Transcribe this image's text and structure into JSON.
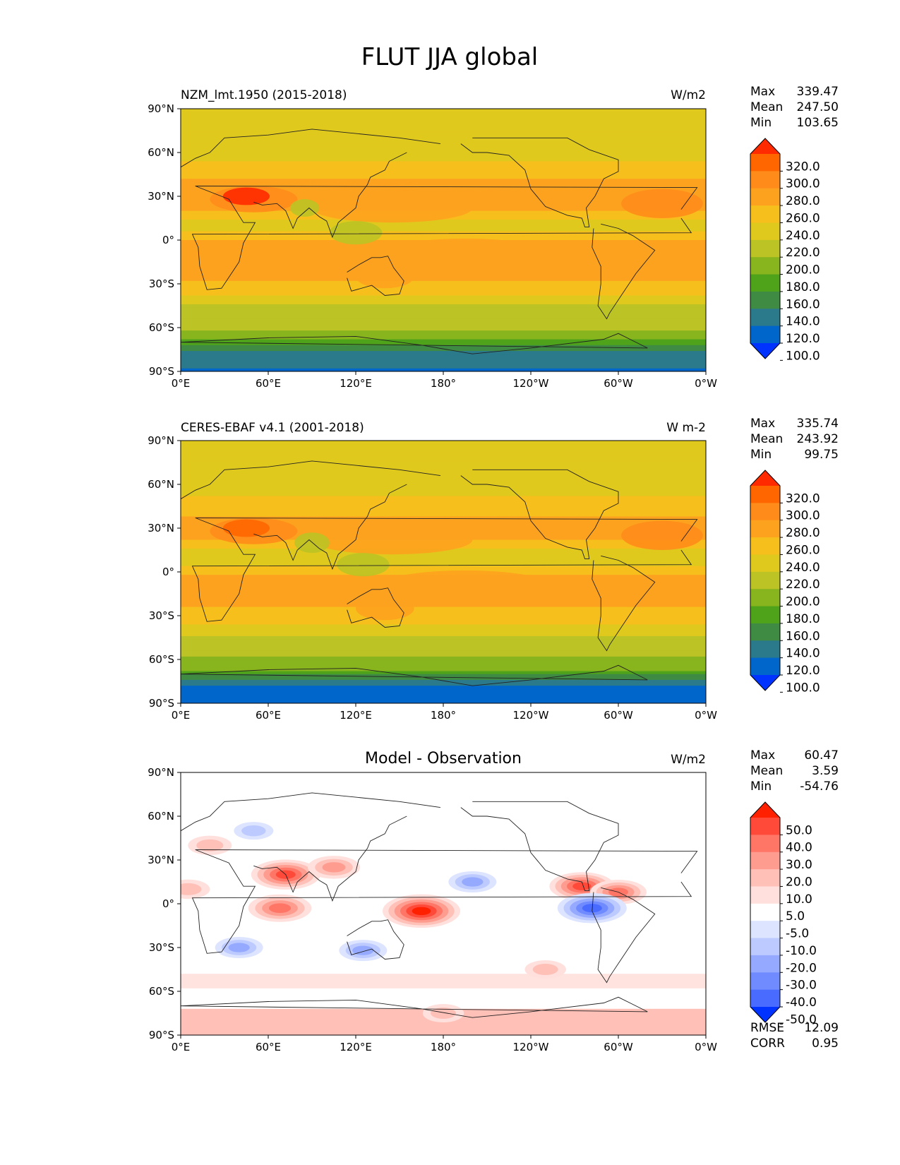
{
  "figure": {
    "title": "FLUT JJA global"
  },
  "chart_data": [
    {
      "type": "heatmap",
      "title": "NZM_lmt.1950 (2015-2018)",
      "units": "W/m2",
      "stats": [
        {
          "label": "Max",
          "value": "339.47"
        },
        {
          "label": "Mean",
          "value": "247.50"
        },
        {
          "label": "Min",
          "value": "103.65"
        }
      ],
      "x_ticks": [
        "0°E",
        "60°E",
        "120°E",
        "180°",
        "120°W",
        "60°W",
        "0°W"
      ],
      "y_ticks": [
        "90°N",
        "60°N",
        "30°N",
        "0°",
        "30°S",
        "60°S",
        "90°S"
      ],
      "xlim": [
        0,
        360
      ],
      "ylim": [
        -90,
        90
      ],
      "colorbar": {
        "levels": [
          "320.0",
          "300.0",
          "280.0",
          "260.0",
          "240.0",
          "220.0",
          "200.0",
          "180.0",
          "160.0",
          "140.0",
          "120.0",
          "100.0"
        ],
        "colors": [
          "#ff2a00",
          "#ff6600",
          "#ff8c1a",
          "#fda21e",
          "#f7bf1c",
          "#e0c91d",
          "#bcc325",
          "#88b41d",
          "#4ea31a",
          "#3f8b43",
          "#2a7a8c",
          "#0066cc",
          "#0033ff"
        ]
      },
      "profile": [
        {
          "lat": 90,
          "value": 230
        },
        {
          "lat": 60,
          "value": 232
        },
        {
          "lat": 40,
          "value": 262
        },
        {
          "lat": 25,
          "value": 278
        },
        {
          "lat": 10,
          "value": 226
        },
        {
          "lat": 0,
          "value": 262
        },
        {
          "lat": -15,
          "value": 275
        },
        {
          "lat": -30,
          "value": 258
        },
        {
          "lat": -45,
          "value": 220
        },
        {
          "lat": -60,
          "value": 205
        },
        {
          "lat": -68,
          "value": 185
        },
        {
          "lat": -78,
          "value": 135
        },
        {
          "lat": -90,
          "value": 118
        }
      ]
    },
    {
      "type": "heatmap",
      "title": "CERES-EBAF v4.1 (2001-2018)",
      "units": "W m-2",
      "stats": [
        {
          "label": "Max",
          "value": "335.74"
        },
        {
          "label": "Mean",
          "value": "243.92"
        },
        {
          "label": "Min",
          "value": "99.75"
        }
      ],
      "x_ticks": [
        "0°E",
        "60°E",
        "120°E",
        "180°",
        "120°W",
        "60°W",
        "0°W"
      ],
      "y_ticks": [
        "90°N",
        "60°N",
        "30°N",
        "0°",
        "30°S",
        "60°S",
        "90°S"
      ],
      "xlim": [
        0,
        360
      ],
      "ylim": [
        -90,
        90
      ],
      "colorbar": {
        "levels": [
          "320.0",
          "300.0",
          "280.0",
          "260.0",
          "240.0",
          "220.0",
          "200.0",
          "180.0",
          "160.0",
          "140.0",
          "120.0",
          "100.0"
        ],
        "colors": [
          "#ff2a00",
          "#ff6600",
          "#ff8c1a",
          "#fda21e",
          "#f7bf1c",
          "#e0c91d",
          "#bcc325",
          "#88b41d",
          "#4ea31a",
          "#3f8b43",
          "#2a7a8c",
          "#0066cc",
          "#0033ff"
        ]
      },
      "profile": [
        {
          "lat": 90,
          "value": 228
        },
        {
          "lat": 60,
          "value": 230
        },
        {
          "lat": 40,
          "value": 258
        },
        {
          "lat": 25,
          "value": 272
        },
        {
          "lat": 10,
          "value": 222
        },
        {
          "lat": 0,
          "value": 258
        },
        {
          "lat": -15,
          "value": 270
        },
        {
          "lat": -30,
          "value": 252
        },
        {
          "lat": -45,
          "value": 218
        },
        {
          "lat": -60,
          "value": 196
        },
        {
          "lat": -68,
          "value": 178
        },
        {
          "lat": -78,
          "value": 118
        },
        {
          "lat": -90,
          "value": 110
        }
      ]
    },
    {
      "type": "heatmap",
      "title": "Model - Observation",
      "units": "W/m2",
      "stats": [
        {
          "label": "Max",
          "value": "60.47"
        },
        {
          "label": "Mean",
          "value": "3.59"
        },
        {
          "label": "Min",
          "value": "-54.76"
        }
      ],
      "metrics": [
        {
          "label": "RMSE",
          "value": "12.09"
        },
        {
          "label": "CORR",
          "value": "0.95"
        }
      ],
      "x_ticks": [
        "0°E",
        "60°E",
        "120°E",
        "180°",
        "120°W",
        "60°W",
        "0°W"
      ],
      "y_ticks": [
        "90°N",
        "60°N",
        "30°N",
        "0°",
        "30°S",
        "60°S",
        "90°S"
      ],
      "xlim": [
        0,
        360
      ],
      "ylim": [
        -90,
        90
      ],
      "colorbar": {
        "levels": [
          "50.0",
          "40.0",
          "30.0",
          "20.0",
          "10.0",
          "5.0",
          "-5.0",
          "-10.0",
          "-20.0",
          "-30.0",
          "-40.0",
          "-50.0"
        ],
        "colors": [
          "#ff2000",
          "#ff4a3a",
          "#ff7566",
          "#ff9c90",
          "#ffc0b8",
          "#ffe0dc",
          "#ffffff",
          "#dde4ff",
          "#bccaff",
          "#95aaff",
          "#6f8bff",
          "#4a6bff",
          "#0033ff"
        ]
      },
      "anomalies": [
        {
          "lat": 20,
          "lon": 72,
          "value": 45
        },
        {
          "lat": -5,
          "lon": 165,
          "value": 55
        },
        {
          "lat": -3,
          "lon": 68,
          "value": 38
        },
        {
          "lat": 12,
          "lon": 275,
          "value": 40
        },
        {
          "lat": 8,
          "lon": 300,
          "value": 30
        },
        {
          "lat": 25,
          "lon": 105,
          "value": 25
        },
        {
          "lat": 15,
          "lon": 200,
          "value": -20
        },
        {
          "lat": -32,
          "lon": 125,
          "value": -20
        },
        {
          "lat": -30,
          "lon": 40,
          "value": -20
        },
        {
          "lat": -3,
          "lon": 282,
          "value": -45
        },
        {
          "lat": 50,
          "lon": 50,
          "value": -10
        },
        {
          "lat": 40,
          "lon": 20,
          "value": 15
        },
        {
          "lat": 10,
          "lon": 5,
          "value": 15
        },
        {
          "lat": -75,
          "lon": 180,
          "value": 12
        },
        {
          "lat": -45,
          "lon": 250,
          "value": 12
        }
      ]
    }
  ]
}
